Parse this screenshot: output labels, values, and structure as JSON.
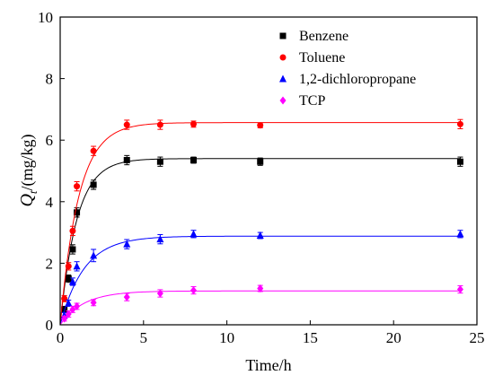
{
  "chart_data": {
    "type": "scatter",
    "xlabel": "Time/h",
    "ylabel_main": "Q",
    "ylabel_sub": "t",
    "ylabel_unit": "/(mg/kg)",
    "xlim": [
      0,
      25
    ],
    "ylim": [
      0,
      10
    ],
    "xticks": [
      0,
      5,
      10,
      15,
      20,
      25
    ],
    "yticks": [
      0,
      2,
      4,
      6,
      8,
      10
    ],
    "grid": false,
    "legend_position": "top-right",
    "series": [
      {
        "name": "Benzene",
        "color": "#000000",
        "marker": "square",
        "x": [
          0.25,
          0.5,
          0.75,
          1,
          2,
          4,
          6,
          8,
          12,
          24
        ],
        "y": [
          0.5,
          1.5,
          2.45,
          3.65,
          4.55,
          5.35,
          5.3,
          5.35,
          5.3,
          5.3
        ],
        "err": [
          0.1,
          0.12,
          0.15,
          0.15,
          0.15,
          0.15,
          0.15,
          0.1,
          0.12,
          0.15
        ],
        "fit_qe": 5.4,
        "fit_k": 1.0
      },
      {
        "name": "Toluene",
        "color": "#ff0000",
        "marker": "circle",
        "x": [
          0.25,
          0.5,
          0.75,
          1,
          2,
          4,
          6,
          8,
          12,
          24
        ],
        "y": [
          0.85,
          1.9,
          3.05,
          4.5,
          5.65,
          6.5,
          6.5,
          6.52,
          6.48,
          6.52
        ],
        "err": [
          0.1,
          0.12,
          0.15,
          0.15,
          0.15,
          0.15,
          0.15,
          0.1,
          0.08,
          0.15
        ],
        "fit_qe": 6.57,
        "fit_k": 0.9
      },
      {
        "name": "1,2-dichloropropane",
        "color": "#0000ff",
        "marker": "triangle",
        "x": [
          0.25,
          0.5,
          0.75,
          1,
          2,
          4,
          6,
          8,
          12,
          24
        ],
        "y": [
          0.3,
          0.7,
          1.4,
          1.9,
          2.25,
          2.62,
          2.78,
          2.95,
          2.9,
          2.95
        ],
        "err": [
          0.1,
          0.1,
          0.12,
          0.15,
          0.2,
          0.15,
          0.15,
          0.12,
          0.1,
          0.12
        ],
        "fit_qe": 2.88,
        "fit_k": 0.7
      },
      {
        "name": "TCP",
        "color": "#ff00ff",
        "marker": "diamond",
        "x": [
          0.25,
          0.5,
          0.75,
          1,
          2,
          4,
          6,
          8,
          12,
          24
        ],
        "y": [
          0.2,
          0.35,
          0.5,
          0.6,
          0.72,
          0.9,
          1.02,
          1.12,
          1.18,
          1.15
        ],
        "err": [
          0.08,
          0.1,
          0.1,
          0.1,
          0.1,
          0.12,
          0.12,
          0.12,
          0.1,
          0.12
        ],
        "fit_qe": 1.1,
        "fit_k": 0.7
      }
    ]
  }
}
